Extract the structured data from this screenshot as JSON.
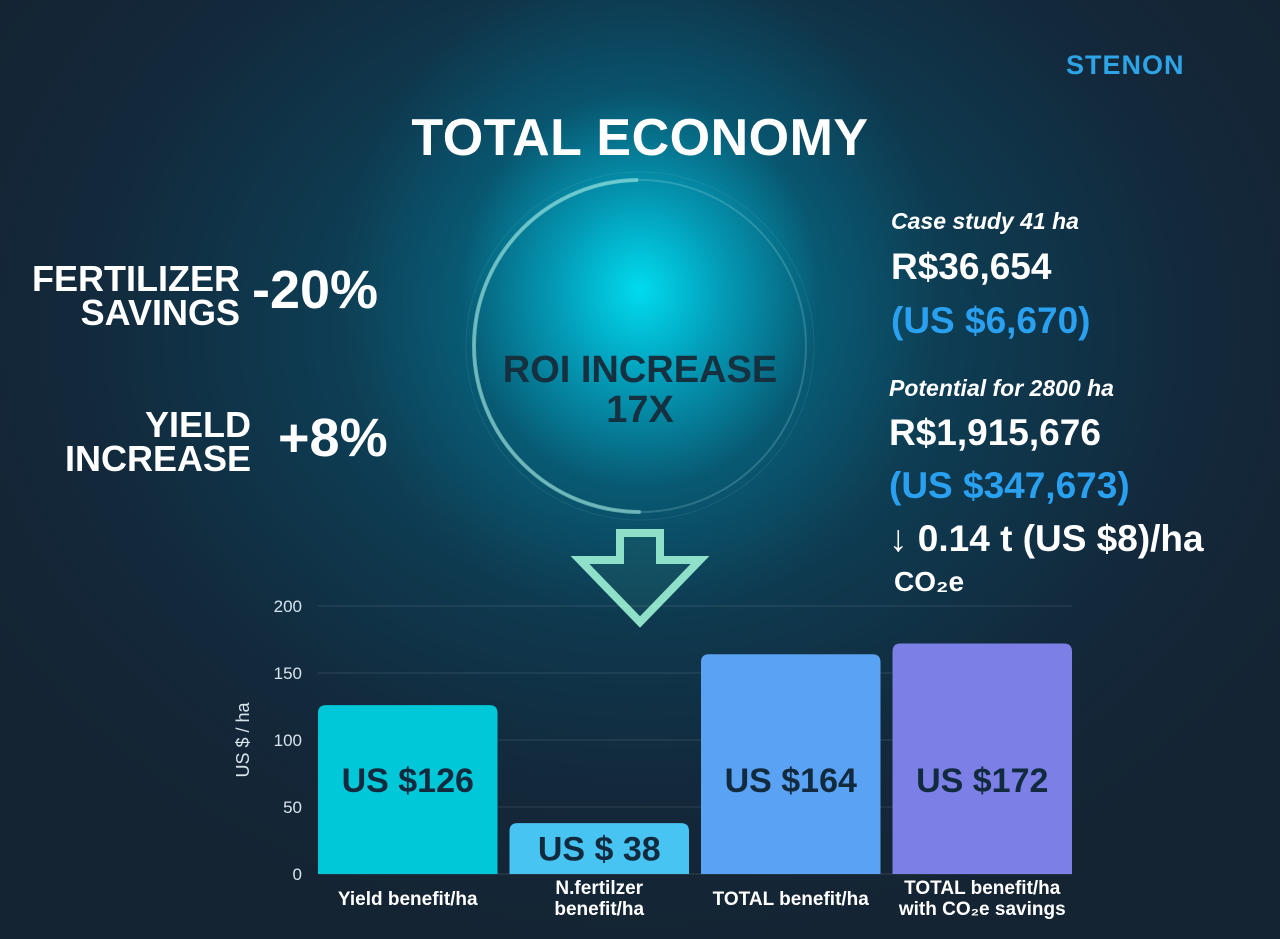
{
  "brand": "STENON",
  "title": "TOTAL ECONOMY",
  "stats": {
    "fertilizer": {
      "label_line1": "FERTILIZER",
      "label_line2": "SAVINGS",
      "value": "-20%"
    },
    "yield": {
      "label_line1": "YIELD",
      "label_line2": "INCREASE",
      "value": "+8%"
    }
  },
  "roi": {
    "line1": "ROI INCREASE",
    "line2": "17X"
  },
  "case_study": {
    "caption": "Case study 41 ha",
    "brl": "R$36,654",
    "usd": "(US $6,670)"
  },
  "potential": {
    "caption": "Potential for 2800 ha",
    "brl": "R$1,915,676",
    "usd": "(US $347,673)"
  },
  "co2": {
    "line1": "↓ 0.14 t (US $8)/ha",
    "line2": "CO₂e"
  },
  "colors": {
    "brand_blue": "#2ea3e6",
    "accent_blue": "#2aa0f0",
    "bar_cyan": "#00c8d8",
    "bar_light_blue": "#48c4f2",
    "bar_blue": "#5aa2f4",
    "bar_purple": "#7b7fe6"
  },
  "chart_data": {
    "type": "bar",
    "ylabel": "US $ / ha",
    "ylim": [
      0,
      200
    ],
    "yticks": [
      0,
      50,
      100,
      150,
      200
    ],
    "grid": true,
    "categories": [
      {
        "line1": "Yield benefit/ha",
        "line2": ""
      },
      {
        "line1": "N.fertilzer",
        "line2": "benefit/ha"
      },
      {
        "line1": "TOTAL benefit/ha",
        "line2": ""
      },
      {
        "line1": "TOTAL benefit/ha",
        "line2": "with CO₂e savings"
      }
    ],
    "values": [
      126,
      38,
      164,
      172
    ],
    "value_labels": [
      "US $126",
      "US $ 38",
      "US $164",
      "US $172"
    ],
    "bar_colors": [
      "#00c8d8",
      "#48c4f2",
      "#5aa2f4",
      "#7b7fe6"
    ]
  }
}
